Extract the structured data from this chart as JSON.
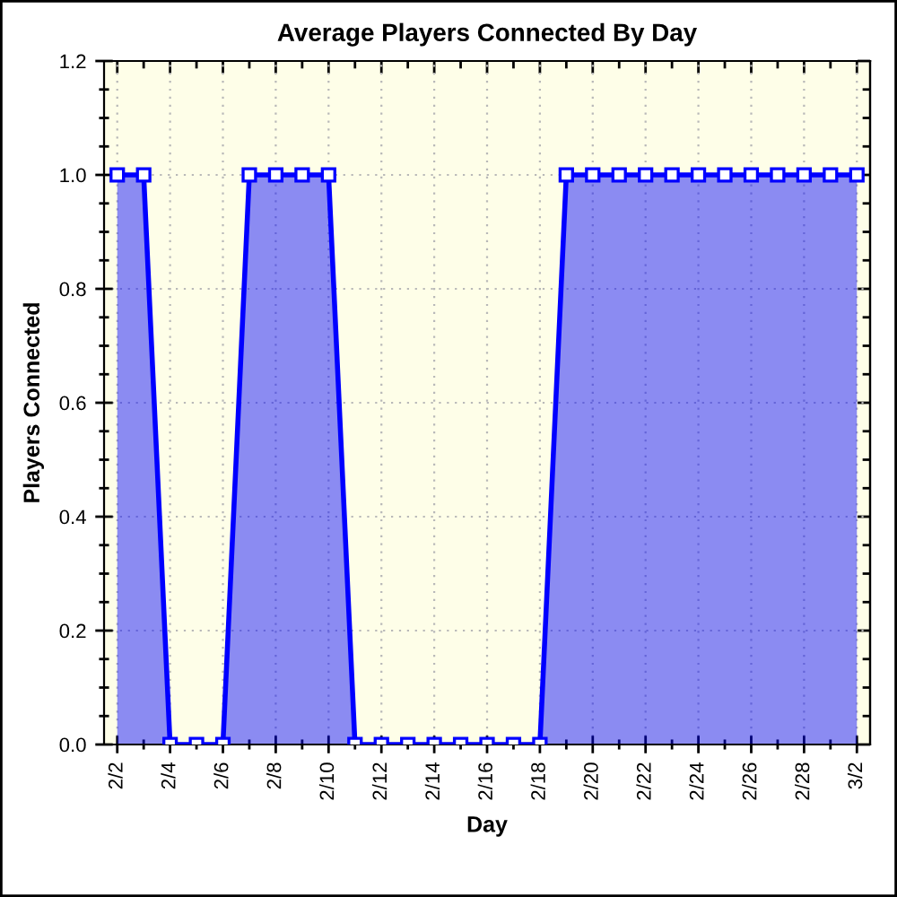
{
  "chart_data": {
    "type": "area",
    "title": "Average Players Connected By Day",
    "xlabel": "Day",
    "ylabel": "Players Connected",
    "categories": [
      "2/2",
      null,
      "2/4",
      null,
      "2/6",
      null,
      "2/8",
      null,
      "2/10",
      null,
      "2/12",
      null,
      "2/14",
      null,
      "2/16",
      null,
      "2/18",
      null,
      "2/20",
      null,
      "2/22",
      null,
      "2/24",
      null,
      "2/26",
      null,
      "2/28",
      null,
      "3/2"
    ],
    "series": [
      {
        "color": "#0000ff",
        "values": [
          1,
          1,
          0,
          0,
          0,
          1,
          1,
          1,
          1,
          0,
          0,
          0,
          0,
          0,
          0,
          0,
          0,
          1,
          1,
          1,
          1,
          1,
          1,
          1,
          1,
          1,
          1,
          1,
          1
        ]
      }
    ],
    "ylim": [
      0,
      1.2
    ],
    "yticks": [
      {
        "value": 0,
        "label": "0.0"
      },
      0.2,
      0.4,
      0.6,
      0.8,
      {
        "value": 1,
        "label": "1.0"
      },
      1.2
    ],
    "grid": true,
    "marker": "square",
    "line_style": "solid"
  }
}
